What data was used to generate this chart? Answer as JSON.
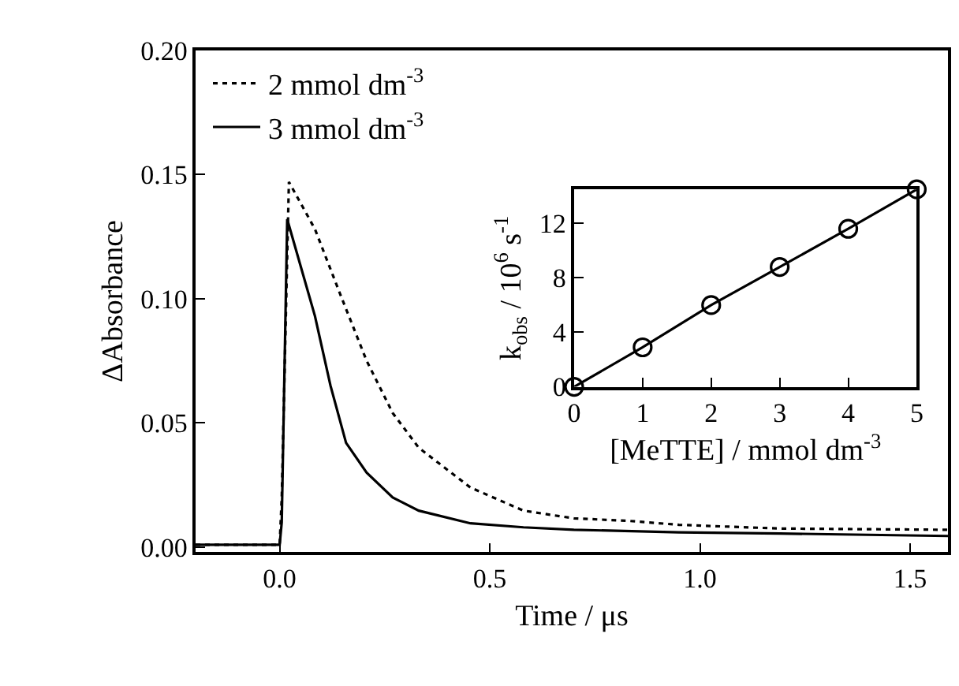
{
  "chart_data": [
    {
      "type": "line",
      "xlabel": "Time / μs",
      "ylabel": "ΔAbsorbance",
      "xlim": [
        -0.2,
        1.59
      ],
      "ylim": [
        -0.002,
        0.2
      ],
      "xticks": [
        {
          "value": 0,
          "label": "0.0"
        },
        {
          "value": 0.5,
          "label": "0.5"
        },
        {
          "value": 1,
          "label": "1.0"
        },
        {
          "value": 1.5,
          "label": "1.5"
        }
      ],
      "yticks": [
        {
          "value": 0,
          "label": "0.00"
        },
        {
          "value": 0.05,
          "label": "0.05"
        },
        {
          "value": 0.1,
          "label": "0.10"
        },
        {
          "value": 0.15,
          "label": "0.15"
        },
        {
          "value": 0.2,
          "label": "0.20"
        }
      ],
      "legend": "top left",
      "series": [
        {
          "name": "2 mmol dm$^{-3}$",
          "color": "#000000",
          "line_style": "dotted",
          "x": [
            -0.2,
            -0.1,
            0.0,
            0.005,
            0.022,
            0.084,
            0.146,
            0.207,
            0.269,
            0.331,
            0.454,
            0.58,
            0.7,
            0.83,
            0.95,
            1.19,
            1.59
          ],
          "values": [
            0.001,
            0.001,
            0.001,
            0.02,
            0.147,
            0.128,
            0.101,
            0.075,
            0.054,
            0.04,
            0.024,
            0.0147,
            0.0116,
            0.0106,
            0.009,
            0.0075,
            0.007
          ]
        },
        {
          "name": "3 mmol dm$^{-3}$",
          "color": "#000000",
          "line_style": "solid",
          "x": [
            -0.2,
            -0.1,
            0.0,
            0.005,
            0.018,
            0.084,
            0.121,
            0.158,
            0.207,
            0.269,
            0.331,
            0.454,
            0.58,
            0.7,
            0.95,
            1.19,
            1.59
          ],
          "values": [
            0.001,
            0.001,
            0.001,
            0.01,
            0.132,
            0.093,
            0.065,
            0.042,
            0.03,
            0.02,
            0.0147,
            0.0096,
            0.008,
            0.007,
            0.006,
            0.0055,
            0.0045
          ]
        }
      ]
    },
    {
      "type": "line",
      "xlabel": "[MeTTE] / mmol dm$^{-3}$",
      "ylabel": "k$_{obs}$ / 10$^{6}$ s$^{-1}$",
      "xlim": [
        0,
        5
      ],
      "ylim": [
        0,
        14.5
      ],
      "xticks": [
        0,
        1,
        2,
        3,
        4,
        5
      ],
      "yticks": [
        0,
        4,
        8,
        12
      ],
      "marker": "circle",
      "line_style": "solid",
      "series": [
        {
          "color": "#000000",
          "x": [
            0,
            1,
            2,
            3,
            4,
            5
          ],
          "values": [
            0,
            2.9,
            6.0,
            8.8,
            11.6,
            14.5
          ]
        }
      ]
    }
  ]
}
